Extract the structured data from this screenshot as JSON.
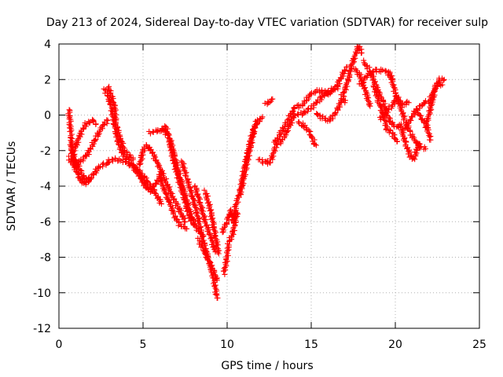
{
  "chart_data": {
    "type": "scatter",
    "title": "Day 213 of 2024, Sidereal Day-to-day VTEC variation (SDTVAR) for receiver sulp",
    "xlabel": "GPS time / hours",
    "ylabel": "SDTVAR / TECUs",
    "xlim": [
      0,
      25
    ],
    "ylim": [
      -12,
      4
    ],
    "xticks": [
      0,
      5,
      10,
      15,
      20,
      25
    ],
    "yticks": [
      -12,
      -10,
      -8,
      -6,
      -4,
      -2,
      0,
      2,
      4
    ],
    "grid": true,
    "marker": "+",
    "color": "#ff0000",
    "tracks": [
      [
        [
          0.6,
          0.3
        ],
        [
          0.7,
          -1.0
        ],
        [
          0.8,
          -2.0
        ],
        [
          1.0,
          -2.6
        ],
        [
          1.3,
          -3.2
        ],
        [
          1.6,
          -3.7
        ],
        [
          2.0,
          -3.4
        ],
        [
          2.4,
          -2.9
        ],
        [
          2.9,
          -2.7
        ]
      ],
      [
        [
          0.7,
          -1.6
        ],
        [
          0.9,
          -2.8
        ],
        [
          1.2,
          -3.5
        ],
        [
          1.5,
          -3.9
        ],
        [
          1.9,
          -3.6
        ]
      ],
      [
        [
          0.6,
          -2.4
        ],
        [
          0.9,
          -2.9
        ],
        [
          1.3,
          -2.6
        ],
        [
          1.7,
          -2.2
        ],
        [
          2.2,
          -1.3
        ],
        [
          2.6,
          -0.6
        ],
        [
          2.9,
          -0.3
        ]
      ],
      [
        [
          0.9,
          -2.0
        ],
        [
          1.3,
          -1.0
        ],
        [
          1.6,
          -0.5
        ],
        [
          2.0,
          -0.3
        ],
        [
          2.2,
          -0.5
        ]
      ],
      [
        [
          2.7,
          1.5
        ],
        [
          2.9,
          1.1
        ],
        [
          3.1,
          0.5
        ],
        [
          3.3,
          -0.5
        ],
        [
          3.5,
          -1.5
        ],
        [
          3.8,
          -2.2
        ],
        [
          4.2,
          -2.6
        ],
        [
          4.6,
          -3.0
        ],
        [
          5.0,
          -3.4
        ],
        [
          5.4,
          -3.9
        ],
        [
          5.8,
          -4.5
        ],
        [
          6.1,
          -5.0
        ]
      ],
      [
        [
          2.9,
          1.6
        ],
        [
          3.1,
          1.2
        ],
        [
          3.3,
          0.5
        ],
        [
          3.4,
          -0.5
        ],
        [
          3.6,
          -1.2
        ],
        [
          3.9,
          -2.0
        ],
        [
          4.4,
          -2.5
        ]
      ],
      [
        [
          2.9,
          -2.6
        ],
        [
          3.4,
          -2.5
        ],
        [
          3.9,
          -2.6
        ],
        [
          4.3,
          -2.8
        ],
        [
          4.7,
          -3.3
        ],
        [
          5.0,
          -3.7
        ],
        [
          5.3,
          -4.1
        ]
      ],
      [
        [
          4.8,
          -2.8
        ],
        [
          5.0,
          -2.0
        ],
        [
          5.2,
          -1.7
        ],
        [
          5.5,
          -2.0
        ],
        [
          5.9,
          -2.8
        ],
        [
          6.3,
          -3.6
        ],
        [
          6.7,
          -4.5
        ],
        [
          7.1,
          -5.2
        ],
        [
          7.5,
          -6.0
        ]
      ],
      [
        [
          5.4,
          -1.0
        ],
        [
          5.8,
          -0.9
        ],
        [
          6.2,
          -0.8
        ],
        [
          6.5,
          -1.2
        ],
        [
          6.8,
          -2.5
        ],
        [
          7.1,
          -3.6
        ],
        [
          7.4,
          -4.5
        ],
        [
          7.7,
          -5.6
        ],
        [
          8.0,
          -6.2
        ]
      ],
      [
        [
          4.6,
          -3.0
        ],
        [
          4.9,
          -3.6
        ],
        [
          5.2,
          -4.1
        ],
        [
          5.5,
          -4.3
        ],
        [
          5.9,
          -3.6
        ],
        [
          6.1,
          -3.2
        ]
      ],
      [
        [
          6.3,
          -0.6
        ],
        [
          6.6,
          -1.3
        ],
        [
          6.9,
          -2.4
        ],
        [
          7.2,
          -3.5
        ],
        [
          7.5,
          -4.5
        ],
        [
          7.8,
          -5.5
        ],
        [
          8.2,
          -6.4
        ],
        [
          8.6,
          -6.8
        ]
      ],
      [
        [
          6.0,
          -3.5
        ],
        [
          6.3,
          -4.3
        ],
        [
          6.6,
          -5.0
        ],
        [
          6.9,
          -5.7
        ],
        [
          7.2,
          -6.2
        ],
        [
          7.6,
          -6.4
        ]
      ],
      [
        [
          7.3,
          -2.6
        ],
        [
          7.6,
          -3.5
        ],
        [
          7.9,
          -4.5
        ],
        [
          8.2,
          -5.5
        ],
        [
          8.5,
          -6.8
        ],
        [
          8.8,
          -7.8
        ],
        [
          9.0,
          -8.5
        ],
        [
          9.2,
          -9.2
        ],
        [
          9.4,
          -10.3
        ]
      ],
      [
        [
          8.1,
          -4.0
        ],
        [
          8.4,
          -5.0
        ],
        [
          8.7,
          -6.0
        ],
        [
          9.0,
          -6.8
        ],
        [
          9.3,
          -7.7
        ]
      ],
      [
        [
          8.7,
          -4.3
        ],
        [
          9.0,
          -5.3
        ],
        [
          9.3,
          -6.8
        ],
        [
          9.5,
          -7.8
        ]
      ],
      [
        [
          8.3,
          -7.0
        ],
        [
          8.6,
          -7.6
        ],
        [
          8.9,
          -8.2
        ],
        [
          9.2,
          -8.8
        ],
        [
          9.4,
          -9.3
        ]
      ],
      [
        [
          9.7,
          -6.6
        ],
        [
          10.0,
          -6.0
        ],
        [
          10.2,
          -5.4
        ],
        [
          10.4,
          -6.0
        ],
        [
          10.5,
          -5.1
        ],
        [
          10.8,
          -4.2
        ],
        [
          11.0,
          -3.1
        ],
        [
          11.2,
          -2.2
        ],
        [
          11.5,
          -1.0
        ],
        [
          11.8,
          -0.3
        ]
      ],
      [
        [
          9.8,
          -8.9
        ],
        [
          10.0,
          -8.0
        ],
        [
          10.1,
          -7.1
        ],
        [
          10.3,
          -6.8
        ],
        [
          10.6,
          -5.5
        ]
      ],
      [
        [
          10.8,
          -4.4
        ],
        [
          11.1,
          -3.0
        ],
        [
          11.4,
          -1.7
        ],
        [
          11.7,
          -0.5
        ],
        [
          12.1,
          -0.1
        ]
      ],
      [
        [
          11.9,
          -2.5
        ],
        [
          12.3,
          -2.7
        ],
        [
          12.6,
          -2.6
        ],
        [
          12.9,
          -1.7
        ],
        [
          13.3,
          -1.4
        ],
        [
          13.6,
          -0.8
        ],
        [
          14.0,
          0.0
        ],
        [
          14.5,
          0.1
        ],
        [
          15.0,
          0.4
        ],
        [
          15.5,
          0.9
        ],
        [
          16.0,
          1.3
        ],
        [
          16.5,
          1.6
        ],
        [
          17.1,
          2.7
        ]
      ],
      [
        [
          12.3,
          0.6
        ],
        [
          12.7,
          0.9
        ]
      ],
      [
        [
          12.8,
          -1.6
        ],
        [
          13.2,
          -1.0
        ],
        [
          13.6,
          -0.3
        ],
        [
          14.0,
          0.4
        ],
        [
          14.5,
          0.6
        ],
        [
          15.0,
          1.2
        ],
        [
          15.5,
          1.4
        ],
        [
          16.0,
          1.2
        ],
        [
          16.6,
          1.6
        ]
      ],
      [
        [
          14.2,
          -0.4
        ],
        [
          14.6,
          -0.6
        ],
        [
          14.9,
          -1.0
        ],
        [
          15.2,
          -1.6
        ],
        [
          15.3,
          -1.7
        ]
      ],
      [
        [
          15.3,
          0.1
        ],
        [
          15.7,
          -0.2
        ],
        [
          16.1,
          -0.3
        ],
        [
          16.5,
          0.2
        ],
        [
          16.9,
          1.0
        ],
        [
          17.0,
          0.7
        ]
      ],
      [
        [
          16.8,
          1.0
        ],
        [
          17.0,
          1.4
        ],
        [
          17.2,
          2.0
        ],
        [
          17.4,
          2.8
        ],
        [
          17.6,
          3.3
        ],
        [
          17.8,
          3.9
        ],
        [
          18.0,
          3.5
        ]
      ],
      [
        [
          17.6,
          2.6
        ],
        [
          17.9,
          2.2
        ],
        [
          18.1,
          1.7
        ],
        [
          18.3,
          1.1
        ],
        [
          18.5,
          0.5
        ]
      ],
      [
        [
          17.9,
          1.7
        ],
        [
          18.3,
          2.2
        ],
        [
          18.7,
          2.5
        ],
        [
          19.1,
          2.5
        ],
        [
          19.5,
          2.5
        ],
        [
          19.8,
          2.0
        ]
      ],
      [
        [
          18.1,
          3.0
        ],
        [
          18.5,
          2.5
        ],
        [
          19.0,
          1.3
        ],
        [
          19.3,
          0.7
        ],
        [
          19.6,
          -0.2
        ],
        [
          19.9,
          -0.6
        ],
        [
          20.2,
          -0.7
        ]
      ],
      [
        [
          18.7,
          1.7
        ],
        [
          19.0,
          0.8
        ],
        [
          19.3,
          0.0
        ],
        [
          19.5,
          -0.8
        ],
        [
          19.8,
          -1.0
        ],
        [
          20.1,
          -1.5
        ]
      ],
      [
        [
          19.1,
          -0.2
        ],
        [
          19.5,
          0.3
        ],
        [
          19.8,
          0.5
        ],
        [
          20.1,
          1.0
        ],
        [
          20.4,
          0.6
        ],
        [
          20.8,
          0.7
        ]
      ],
      [
        [
          19.7,
          2.4
        ],
        [
          20.0,
          1.2
        ],
        [
          20.3,
          0.5
        ],
        [
          20.6,
          -0.4
        ],
        [
          20.9,
          -1.0
        ],
        [
          21.2,
          -1.5
        ],
        [
          21.5,
          -1.8
        ],
        [
          21.8,
          -1.9
        ]
      ],
      [
        [
          20.3,
          -0.5
        ],
        [
          20.6,
          -1.6
        ],
        [
          20.9,
          -2.3
        ],
        [
          21.1,
          -2.5
        ],
        [
          21.4,
          -1.6
        ]
      ],
      [
        [
          20.6,
          -0.8
        ],
        [
          21.0,
          -0.1
        ],
        [
          21.3,
          0.4
        ],
        [
          21.6,
          0.5
        ],
        [
          21.8,
          0.8
        ]
      ],
      [
        [
          21.3,
          0.2
        ],
        [
          21.6,
          -0.2
        ],
        [
          21.9,
          -0.7
        ],
        [
          22.1,
          -1.4
        ]
      ],
      [
        [
          21.8,
          -0.7
        ],
        [
          22.0,
          0.0
        ],
        [
          22.2,
          0.8
        ],
        [
          22.4,
          1.6
        ],
        [
          22.6,
          1.8
        ],
        [
          22.8,
          1.7
        ]
      ],
      [
        [
          22.0,
          0.7
        ],
        [
          22.3,
          1.4
        ],
        [
          22.6,
          2.0
        ],
        [
          22.9,
          2.0
        ]
      ]
    ]
  }
}
